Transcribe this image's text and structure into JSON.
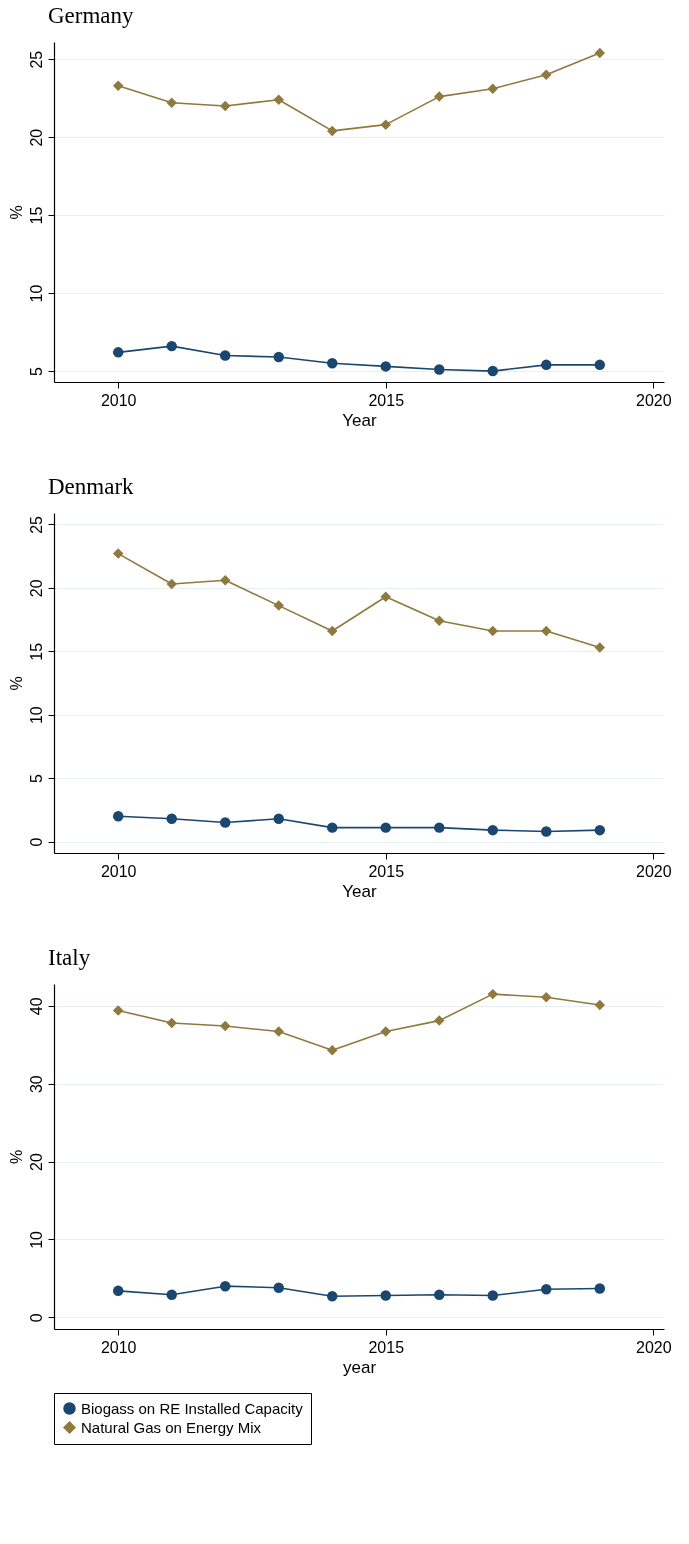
{
  "chart_data": [
    {
      "type": "line",
      "title": "Germany",
      "xlabel": "Year",
      "ylabel": "%",
      "x": [
        2010,
        2011,
        2012,
        2013,
        2014,
        2015,
        2016,
        2017,
        2018,
        2019
      ],
      "xlim": [
        2008.8,
        2020.2
      ],
      "xticks": [
        2010,
        2015,
        2020
      ],
      "ylim": [
        4.3,
        26.1
      ],
      "yticks": [
        5,
        10,
        15,
        20,
        25
      ],
      "grid": "y",
      "series": [
        {
          "color": "#1a476f",
          "marker": "circle",
          "values": [
            6.2,
            6.6,
            6.0,
            5.9,
            5.5,
            5.3,
            5.1,
            5.0,
            5.4,
            5.4
          ]
        },
        {
          "color": "#90793e",
          "marker": "diamond",
          "values": [
            23.3,
            22.2,
            22.0,
            22.4,
            20.4,
            20.8,
            22.6,
            23.1,
            24.0,
            25.4
          ]
        }
      ]
    },
    {
      "type": "line",
      "title": "Denmark",
      "xlabel": "Year",
      "ylabel": "%",
      "x": [
        2010,
        2011,
        2012,
        2013,
        2014,
        2015,
        2016,
        2017,
        2018,
        2019
      ],
      "xlim": [
        2008.8,
        2020.2
      ],
      "xticks": [
        2010,
        2015,
        2020
      ],
      "ylim": [
        -0.9,
        25.9
      ],
      "yticks": [
        0,
        5,
        10,
        15,
        20,
        25
      ],
      "grid": "y",
      "series": [
        {
          "color": "#1a476f",
          "marker": "circle",
          "values": [
            2.0,
            1.8,
            1.5,
            1.8,
            1.1,
            1.1,
            1.1,
            0.9,
            0.8,
            0.9
          ]
        },
        {
          "color": "#90793e",
          "marker": "diamond",
          "values": [
            22.7,
            20.3,
            20.6,
            18.6,
            16.6,
            19.3,
            17.4,
            16.6,
            16.6,
            15.3
          ]
        }
      ]
    },
    {
      "type": "line",
      "title": "Italy",
      "xlabel": "year",
      "ylabel": "%",
      "x": [
        2010,
        2011,
        2012,
        2013,
        2014,
        2015,
        2016,
        2017,
        2018,
        2019
      ],
      "xlim": [
        2008.8,
        2020.2
      ],
      "xticks": [
        2010,
        2015,
        2020
      ],
      "ylim": [
        -1.5,
        42.8
      ],
      "yticks": [
        0,
        10,
        20,
        30,
        40
      ],
      "grid": "y",
      "legend": "bottom",
      "series": [
        {
          "name": "Biogass on RE Installed Capacity",
          "color": "#1a476f",
          "marker": "circle",
          "values": [
            3.4,
            2.9,
            4.0,
            3.8,
            2.7,
            2.8,
            2.9,
            2.8,
            3.6,
            3.7
          ]
        },
        {
          "name": "Natural Gas on Energy Mix",
          "color": "#90793e",
          "marker": "diamond",
          "values": [
            39.4,
            37.8,
            37.4,
            36.7,
            34.3,
            36.7,
            38.1,
            41.5,
            41.1,
            40.1
          ]
        }
      ]
    }
  ]
}
